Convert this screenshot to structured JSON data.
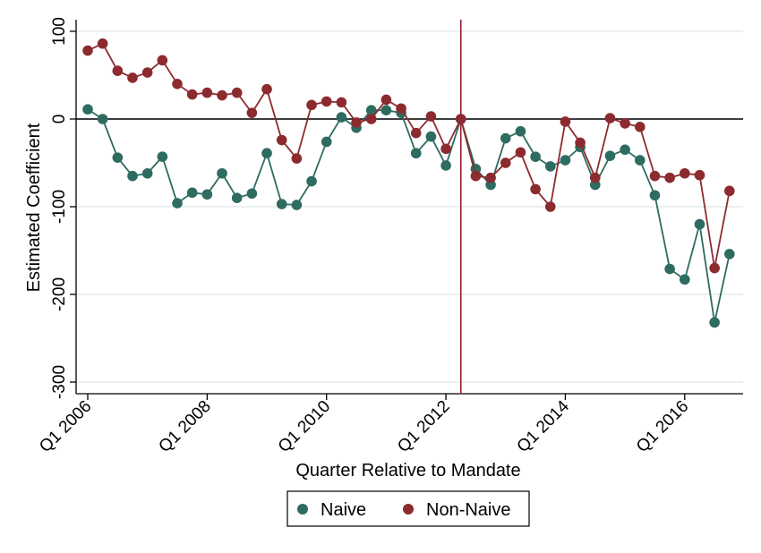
{
  "chart_data": {
    "type": "line",
    "title": "",
    "xlabel": "Quarter Relative to Mandate",
    "ylabel": "Estimated Coefficient",
    "ylim": [
      -300,
      100
    ],
    "yticks": [
      100,
      0,
      -100,
      -200,
      -300
    ],
    "xticks": [
      {
        "q": 0,
        "label": "Q1 2006"
      },
      {
        "q": 8,
        "label": "Q1 2008"
      },
      {
        "q": 16,
        "label": "Q1 2010"
      },
      {
        "q": 24,
        "label": "Q1 2012"
      },
      {
        "q": 32,
        "label": "Q1 2014"
      },
      {
        "q": 40,
        "label": "Q1 2016"
      }
    ],
    "x_unit": "quarter index from Q1 2006",
    "mandate_quarter": 25,
    "reference_line_y": 0,
    "grid": true,
    "legend_position": "bottom",
    "series": [
      {
        "name": "Naive",
        "color": "#2e6b60",
        "values": [
          11,
          0,
          -44,
          -65,
          -62,
          -43,
          -96,
          -84,
          -86,
          -62,
          -90,
          -85,
          -39,
          -97,
          -98,
          -71,
          -26,
          2,
          -10,
          10,
          10,
          7,
          -39,
          -20,
          -53,
          0,
          -57,
          -75,
          -22,
          -14,
          -43,
          -54,
          -47,
          -32,
          -75,
          -42,
          -35,
          -47,
          -87,
          -171,
          -183,
          -120,
          -232,
          -154
        ]
      },
      {
        "name": "Non-Naive",
        "color": "#8c2b2f",
        "values": [
          78,
          86,
          55,
          47,
          53,
          67,
          40,
          28,
          30,
          27,
          30,
          7,
          34,
          -24,
          -45,
          16,
          20,
          19,
          -4,
          0,
          22,
          12,
          -16,
          3,
          -34,
          0,
          -65,
          -67,
          -50,
          -38,
          -80,
          -100,
          -3,
          -27,
          -67,
          1,
          -5,
          -9,
          -65,
          -67,
          -62,
          -64,
          -170,
          -82
        ]
      }
    ]
  }
}
